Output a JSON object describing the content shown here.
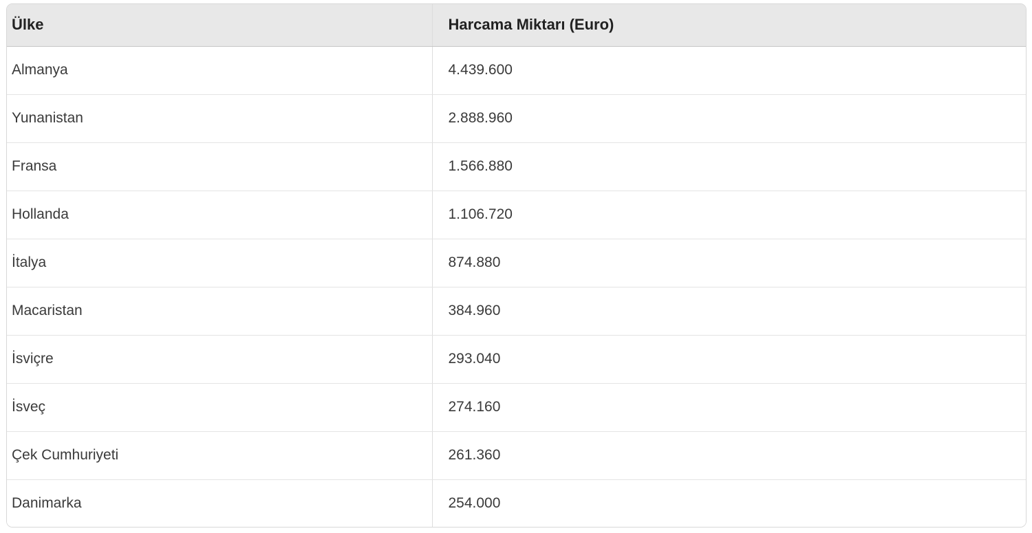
{
  "chart_data": {
    "type": "table",
    "columns": [
      "Ülke",
      "Harcama Miktarı (Euro)"
    ],
    "rows": [
      {
        "country": "Almanya",
        "amount": "4.439.600"
      },
      {
        "country": "Yunanistan",
        "amount": "2.888.960"
      },
      {
        "country": "Fransa",
        "amount": "1.566.880"
      },
      {
        "country": "Hollanda",
        "amount": "1.106.720"
      },
      {
        "country": "İtalya",
        "amount": "874.880"
      },
      {
        "country": "Macaristan",
        "amount": "384.960"
      },
      {
        "country": "İsviçre",
        "amount": "293.040"
      },
      {
        "country": "İsveç",
        "amount": "274.160"
      },
      {
        "country": "Çek Cumhuriyeti",
        "amount": "261.360"
      },
      {
        "country": "Danimarka",
        "amount": "254.000"
      }
    ],
    "layout": {
      "header_bg": "#e8e8e8",
      "header_text_color": "#212121",
      "body_text_color": "#3a3a3a",
      "row_border_color": "#e4e4e4",
      "header_border_color": "#c6c6c6",
      "outer_border_color": "#d8d8d8"
    }
  }
}
